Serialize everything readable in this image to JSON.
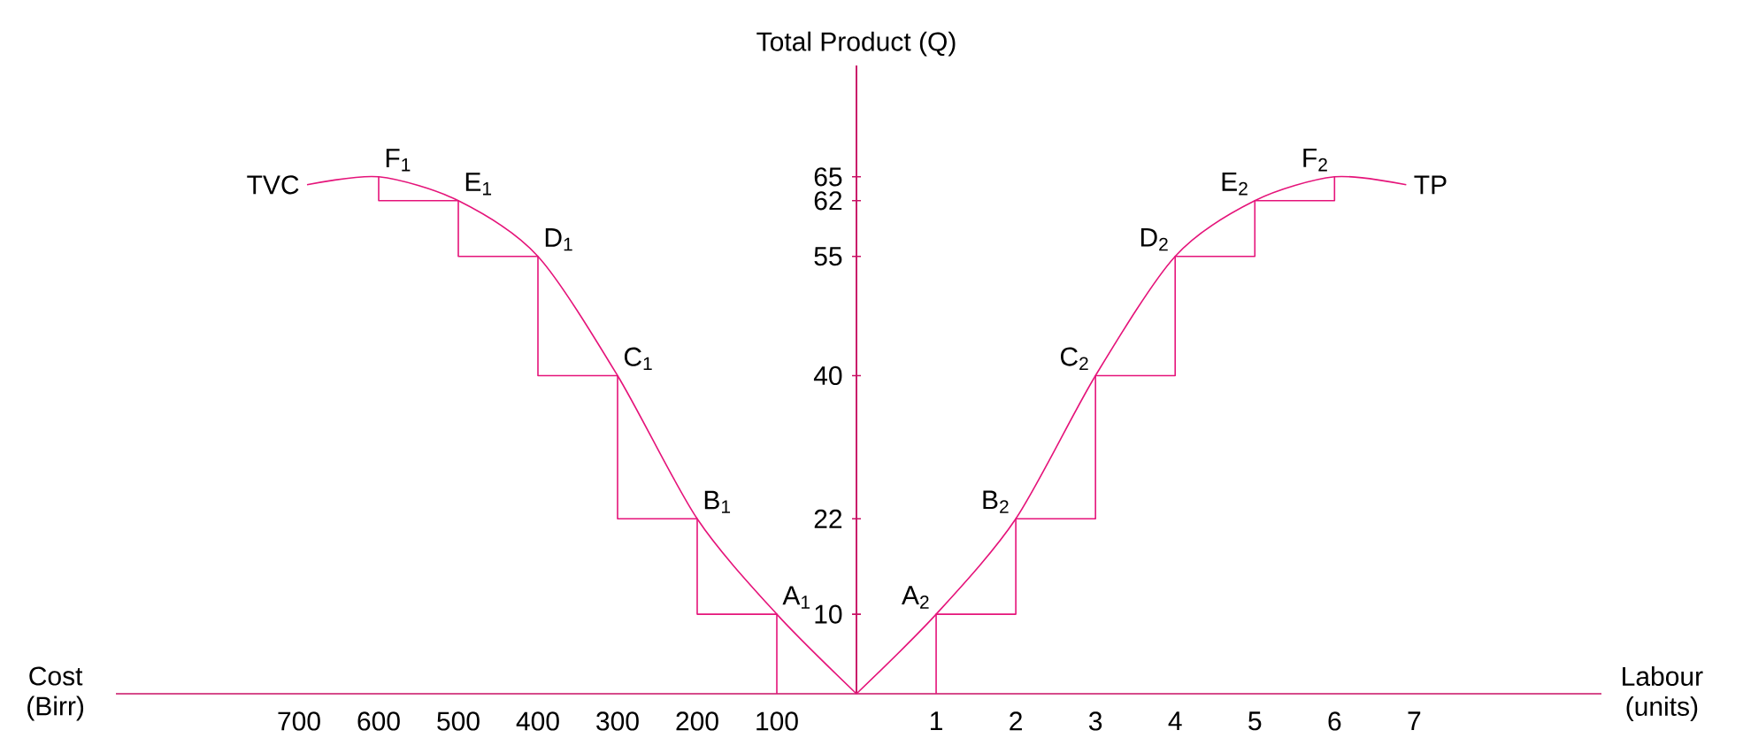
{
  "chart_data": [
    {
      "type": "line",
      "xlabel": "Cost (Birr)",
      "xlim": [
        930,
        0
      ],
      "xticks": [
        100,
        200,
        300,
        400,
        500,
        600,
        700
      ],
      "ylim": [
        0,
        79
      ],
      "tick_labels": "x",
      "series": [
        {
          "name": "TVC",
          "color": "#e5147a",
          "x": [
            0,
            100,
            200,
            300,
            400,
            500,
            600,
            690
          ],
          "values": [
            0,
            10,
            22,
            40,
            55,
            62,
            65,
            64
          ]
        },
        {
          "type": "step",
          "color": "#e5147a",
          "x": [
            100,
            100,
            200,
            300,
            400,
            500,
            600
          ],
          "values": [
            0,
            10,
            22,
            40,
            55,
            62,
            65
          ]
        }
      ],
      "annotations": [
        {
          "text": "A$_{1}$",
          "x": 100,
          "y": 10
        },
        {
          "text": "B$_{1}$",
          "x": 200,
          "y": 22
        },
        {
          "text": "C$_{1}$",
          "x": 300,
          "y": 40
        },
        {
          "text": "D$_{1}$",
          "x": 400,
          "y": 55
        },
        {
          "text": "E$_{1}$",
          "x": 500,
          "y": 62
        },
        {
          "text": "F$_{1}$",
          "x": 600,
          "y": 65
        }
      ]
    },
    {
      "type": "line",
      "xlabel": "Labour (units)",
      "ylabel": "Total Product (Q)",
      "xlim": [
        0,
        9.35
      ],
      "xticks": [
        1,
        2,
        3,
        4,
        5,
        6,
        7
      ],
      "ylim": [
        0,
        79
      ],
      "yticks": [
        10,
        22,
        40,
        55,
        62,
        65
      ],
      "series": [
        {
          "name": "TP",
          "color": "#e5147a",
          "x": [
            0,
            1,
            2,
            3,
            4,
            5,
            6,
            6.9
          ],
          "values": [
            0,
            10,
            22,
            40,
            55,
            62,
            65,
            64
          ]
        },
        {
          "type": "step",
          "color": "#e5147a",
          "x": [
            1,
            1,
            2,
            3,
            4,
            5,
            6
          ],
          "values": [
            0,
            10,
            22,
            40,
            55,
            62,
            65
          ]
        }
      ],
      "annotations": [
        {
          "text": "A$_{2}$",
          "x": 1,
          "y": 10
        },
        {
          "text": "B$_{2}$",
          "x": 2,
          "y": 22
        },
        {
          "text": "C$_{2}$",
          "x": 3,
          "y": 40
        },
        {
          "text": "D$_{2}$",
          "x": 4,
          "y": 55
        },
        {
          "text": "E$_{2}$",
          "x": 5,
          "y": 62
        },
        {
          "text": "F$_{2}$",
          "x": 6,
          "y": 65
        }
      ]
    }
  ]
}
